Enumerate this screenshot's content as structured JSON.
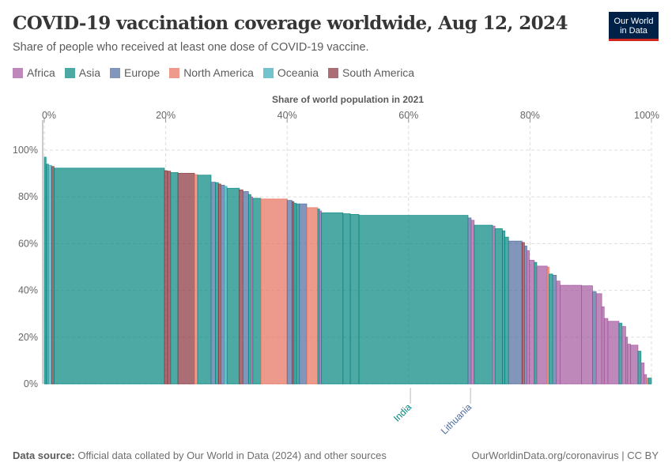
{
  "header": {
    "title": "COVID-19 vaccination coverage worldwide, Aug 12, 2024",
    "subtitle": "Share of people who received at least one dose of COVID-19 vaccine.",
    "logo": "Our World in Data"
  },
  "footer": {
    "source_label": "Data source:",
    "source_text": "Official data collated by Our World in Data (2024) and other sources",
    "url": "OurWorldinData.org/coronavirus | CC BY"
  },
  "chart_data": {
    "type": "marimekko",
    "title": "COVID-19 vaccination coverage worldwide, Aug 12, 2024",
    "xlabel": "Share of world population in 2021",
    "ylabel": "",
    "xlim": [
      0,
      100
    ],
    "ylim": [
      0,
      100
    ],
    "x_ticks": [
      "0%",
      "20%",
      "40%",
      "60%",
      "80%",
      "100%"
    ],
    "y_ticks": [
      "0%",
      "20%",
      "40%",
      "60%",
      "80%",
      "100%"
    ],
    "grid": true,
    "legend_position": "top-left",
    "colors": {
      "Africa": "#a2559c",
      "Asia": "#00847e",
      "Europe": "#4c6a9c",
      "North America": "#e56e5a",
      "Oceania": "#38aaba",
      "South America": "#883039"
    },
    "legend": [
      "Africa",
      "Asia",
      "Europe",
      "North America",
      "Oceania",
      "South America"
    ],
    "annotations": [
      {
        "label": "India",
        "region": "Asia",
        "x": 60.3
      },
      {
        "label": "Lithuania",
        "region": "Europe",
        "x": 70.2
      }
    ],
    "bars": [
      {
        "region": "Asia",
        "width": 0.3,
        "value": 97
      },
      {
        "region": "Asia",
        "width": 0.4,
        "value": 94
      },
      {
        "region": "Oceania",
        "width": 0.5,
        "value": 93.5
      },
      {
        "region": "South America",
        "width": 0.4,
        "value": 93
      },
      {
        "region": "Asia",
        "width": 18.0,
        "value": 92.3
      },
      {
        "region": "South America",
        "width": 0.5,
        "value": 91.2
      },
      {
        "region": "South America",
        "width": 0.5,
        "value": 91
      },
      {
        "region": "Asia",
        "width": 1.2,
        "value": 90.4
      },
      {
        "region": "South America",
        "width": 2.7,
        "value": 90.1
      },
      {
        "region": "North America",
        "width": 0.5,
        "value": 89.5
      },
      {
        "region": "Asia",
        "width": 2.2,
        "value": 89.3
      },
      {
        "region": "Europe",
        "width": 0.7,
        "value": 86.3
      },
      {
        "region": "Asia",
        "width": 0.5,
        "value": 86.1
      },
      {
        "region": "South America",
        "width": 0.4,
        "value": 85.5
      },
      {
        "region": "Europe",
        "width": 0.6,
        "value": 85
      },
      {
        "region": "Oceania",
        "width": 0.4,
        "value": 84.5
      },
      {
        "region": "Asia",
        "width": 2.0,
        "value": 83.7
      },
      {
        "region": "South America",
        "width": 0.6,
        "value": 83
      },
      {
        "region": "Europe",
        "width": 0.9,
        "value": 82.3
      },
      {
        "region": "Asia",
        "width": 0.4,
        "value": 81
      },
      {
        "region": "Africa",
        "width": 0.3,
        "value": 80
      },
      {
        "region": "Asia",
        "width": 1.3,
        "value": 79.4
      },
      {
        "region": "North America",
        "width": 4.3,
        "value": 79.1
      },
      {
        "region": "Europe",
        "width": 0.8,
        "value": 78.5
      },
      {
        "region": "South America",
        "width": 0.3,
        "value": 78
      },
      {
        "region": "Asia",
        "width": 0.4,
        "value": 77.3
      },
      {
        "region": "Asia",
        "width": 0.5,
        "value": 77
      },
      {
        "region": "Europe",
        "width": 1.2,
        "value": 77
      },
      {
        "region": "North America",
        "width": 1.8,
        "value": 75.4
      },
      {
        "region": "Asia",
        "width": 0.3,
        "value": 74.8
      },
      {
        "region": "Africa",
        "width": 0.3,
        "value": 74
      },
      {
        "region": "Asia",
        "width": 3.5,
        "value": 73.2
      },
      {
        "region": "Asia",
        "width": 1.2,
        "value": 72.8
      },
      {
        "region": "Asia",
        "width": 1.4,
        "value": 72.5
      },
      {
        "region": "Asia",
        "width": 17.8,
        "value": 72.1
      },
      {
        "region": "Europe",
        "width": 0.5,
        "value": 71
      },
      {
        "region": "Africa",
        "width": 0.5,
        "value": 70
      },
      {
        "region": "Asia",
        "width": 3.0,
        "value": 67.9
      },
      {
        "region": "Africa",
        "width": 0.4,
        "value": 67.5
      },
      {
        "region": "Asia",
        "width": 1.2,
        "value": 66.4
      },
      {
        "region": "Asia",
        "width": 0.4,
        "value": 65.5
      },
      {
        "region": "Asia",
        "width": 0.6,
        "value": 62.8
      },
      {
        "region": "Europe",
        "width": 2.2,
        "value": 61.1
      },
      {
        "region": "South America",
        "width": 0.4,
        "value": 60.5
      },
      {
        "region": "Europe",
        "width": 0.4,
        "value": 59
      },
      {
        "region": "Africa",
        "width": 0.4,
        "value": 57
      },
      {
        "region": "Africa",
        "width": 0.8,
        "value": 52.9
      },
      {
        "region": "Asia",
        "width": 0.4,
        "value": 52
      },
      {
        "region": "Africa",
        "width": 1.7,
        "value": 50.4
      },
      {
        "region": "North America",
        "width": 0.3,
        "value": 50
      },
      {
        "region": "Asia",
        "width": 0.6,
        "value": 47
      },
      {
        "region": "Europe",
        "width": 0.6,
        "value": 46.5
      },
      {
        "region": "Africa",
        "width": 0.6,
        "value": 44
      },
      {
        "region": "Africa",
        "width": 3.5,
        "value": 42.2
      },
      {
        "region": "Africa",
        "width": 1.8,
        "value": 42
      },
      {
        "region": "Europe",
        "width": 0.6,
        "value": 39.5
      },
      {
        "region": "Africa",
        "width": 0.9,
        "value": 38.6
      },
      {
        "region": "Africa",
        "width": 0.4,
        "value": 33
      },
      {
        "region": "Africa",
        "width": 0.6,
        "value": 28
      },
      {
        "region": "Africa",
        "width": 1.8,
        "value": 26.8
      },
      {
        "region": "Asia",
        "width": 0.5,
        "value": 26
      },
      {
        "region": "Africa",
        "width": 0.6,
        "value": 24.6
      },
      {
        "region": "Africa",
        "width": 0.3,
        "value": 20
      },
      {
        "region": "Africa",
        "width": 0.5,
        "value": 17
      },
      {
        "region": "Africa",
        "width": 1.2,
        "value": 16.6
      },
      {
        "region": "Asia",
        "width": 0.5,
        "value": 14
      },
      {
        "region": "Africa",
        "width": 0.5,
        "value": 9
      },
      {
        "region": "Africa",
        "width": 0.4,
        "value": 4
      },
      {
        "region": "North America",
        "width": 0.3,
        "value": 2.5
      },
      {
        "region": "Asia",
        "width": 0.5,
        "value": 2.5
      }
    ]
  }
}
